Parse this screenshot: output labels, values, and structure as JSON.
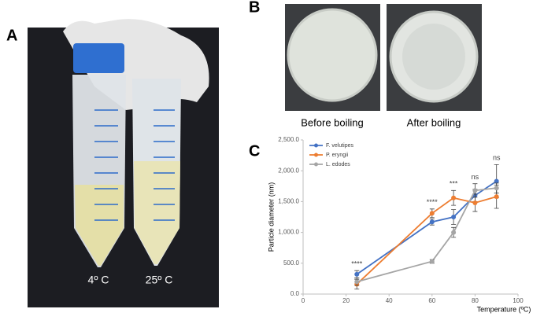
{
  "figure": {
    "panel_labels": [
      "A",
      "B",
      "C"
    ],
    "tube_labels": [
      "4º C",
      "25º C"
    ],
    "dish_captions": [
      "Before boiling",
      "After boiling"
    ]
  },
  "chart_data": {
    "type": "line",
    "x_label": "Temperature (ºC)",
    "y_label": "Particle diameter (nm)",
    "x": [
      25,
      60,
      70,
      80,
      90
    ],
    "series": [
      {
        "name": "F. velutipes",
        "color": "#4472c4",
        "values": [
          320,
          1170,
          1250,
          1600,
          1830
        ],
        "errors": [
          60,
          50,
          120,
          100,
          270
        ]
      },
      {
        "name": "P. eryngii",
        "color": "#ed7d31",
        "values": [
          160,
          1310,
          1560,
          1480,
          1580
        ],
        "errors": [
          80,
          70,
          120,
          140,
          190
        ]
      },
      {
        "name": "L. edodes",
        "color": "#a5a5a5",
        "values": [
          200,
          530,
          1000,
          1680,
          1720
        ],
        "errors": [
          60,
          30,
          80,
          110,
          80
        ]
      }
    ],
    "annotations": [
      {
        "text": "****",
        "x": 25
      },
      {
        "text": "****",
        "x": 60
      },
      {
        "text": "***",
        "x": 70
      },
      {
        "text": "ns",
        "x": 80
      },
      {
        "text": "ns",
        "x": 90
      }
    ],
    "xlim": [
      0,
      100
    ],
    "xticks": [
      0,
      20,
      40,
      60,
      80,
      100
    ],
    "ylim": [
      0,
      2500
    ],
    "yticks": [
      {
        "value": 0,
        "label": "0.0"
      },
      {
        "value": 500,
        "label": "500.0"
      },
      {
        "value": 1000,
        "label": "1,000.0"
      },
      {
        "value": 1500,
        "label": "1,500.0"
      },
      {
        "value": 2000,
        "label": "2,000.0"
      },
      {
        "value": 2500,
        "label": "2,500.0"
      }
    ],
    "legend": "upper left"
  }
}
